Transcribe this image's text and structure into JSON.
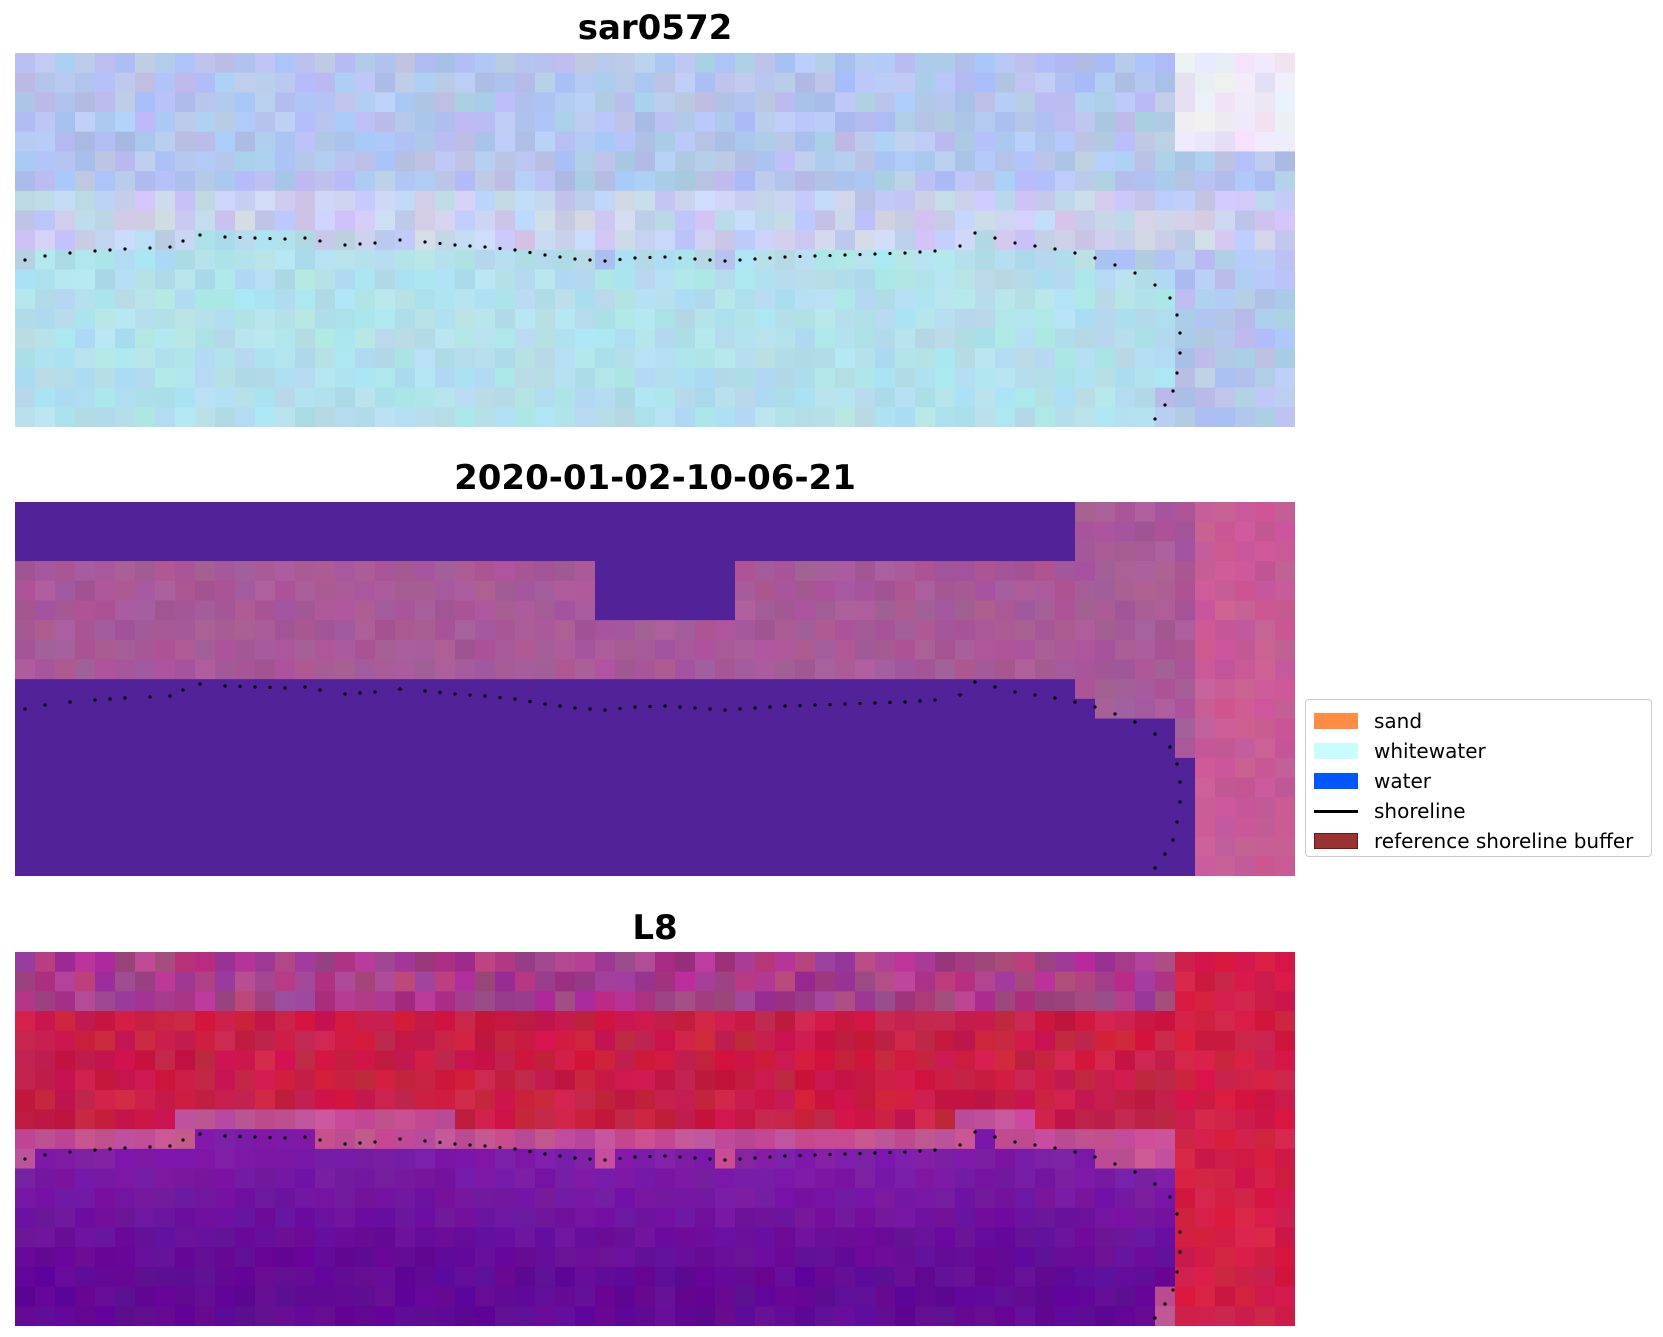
{
  "panels": [
    {
      "title": "sar0572",
      "image": "sar-composite"
    },
    {
      "title": "2020-01-02-10-06-21",
      "image": "index-classification"
    },
    {
      "title": "L8",
      "image": "l8-false-color"
    }
  ],
  "legend": {
    "items": [
      {
        "label": "sand",
        "kind": "patch",
        "color": "#ff8c42"
      },
      {
        "label": "whitewater",
        "kind": "patch",
        "color": "#c8fcff"
      },
      {
        "label": "water",
        "kind": "patch",
        "color": "#0057ff"
      },
      {
        "label": "shoreline",
        "kind": "line",
        "color": "#000000"
      },
      {
        "label": "reference shoreline buffer",
        "kind": "patch",
        "color": "#9a3232",
        "edge": "#6b1a1a"
      }
    ]
  }
}
